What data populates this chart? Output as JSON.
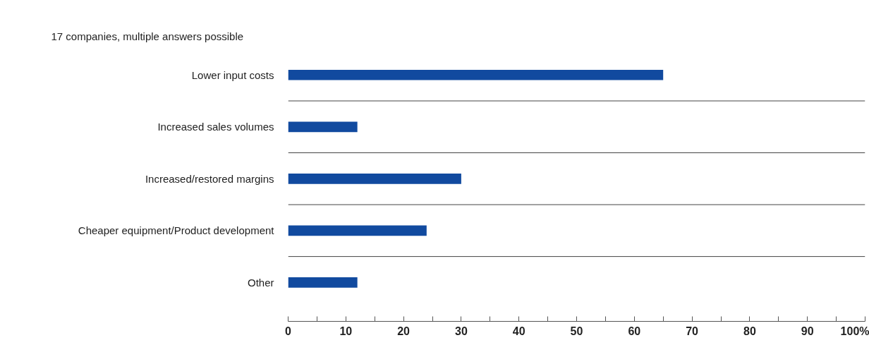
{
  "chart_data": {
    "type": "bar",
    "orientation": "horizontal",
    "subtitle": "17 companies, multiple answers possible",
    "categories": [
      "Lower input costs",
      "Increased sales volumes",
      "Increased/restored margins",
      "Cheaper equipment/Product development",
      "Other"
    ],
    "values": [
      65,
      12,
      30,
      24,
      12
    ],
    "color": "#114a9f",
    "xlim": [
      0,
      100
    ],
    "xticks": [
      0,
      {
        "value": 5,
        "label": null
      },
      10,
      {
        "value": 15,
        "label": null
      },
      20,
      {
        "value": 25,
        "label": null
      },
      30,
      {
        "value": 35,
        "label": null
      },
      40,
      {
        "value": 45,
        "label": null
      },
      50,
      {
        "value": 55,
        "label": null
      },
      60,
      {
        "value": 65,
        "label": null
      },
      70,
      {
        "value": 75,
        "label": null
      },
      80,
      {
        "value": 85,
        "label": null
      },
      90,
      {
        "value": 95,
        "label": null
      },
      {
        "value": 100,
        "label": "100%"
      }
    ],
    "grid": false
  }
}
